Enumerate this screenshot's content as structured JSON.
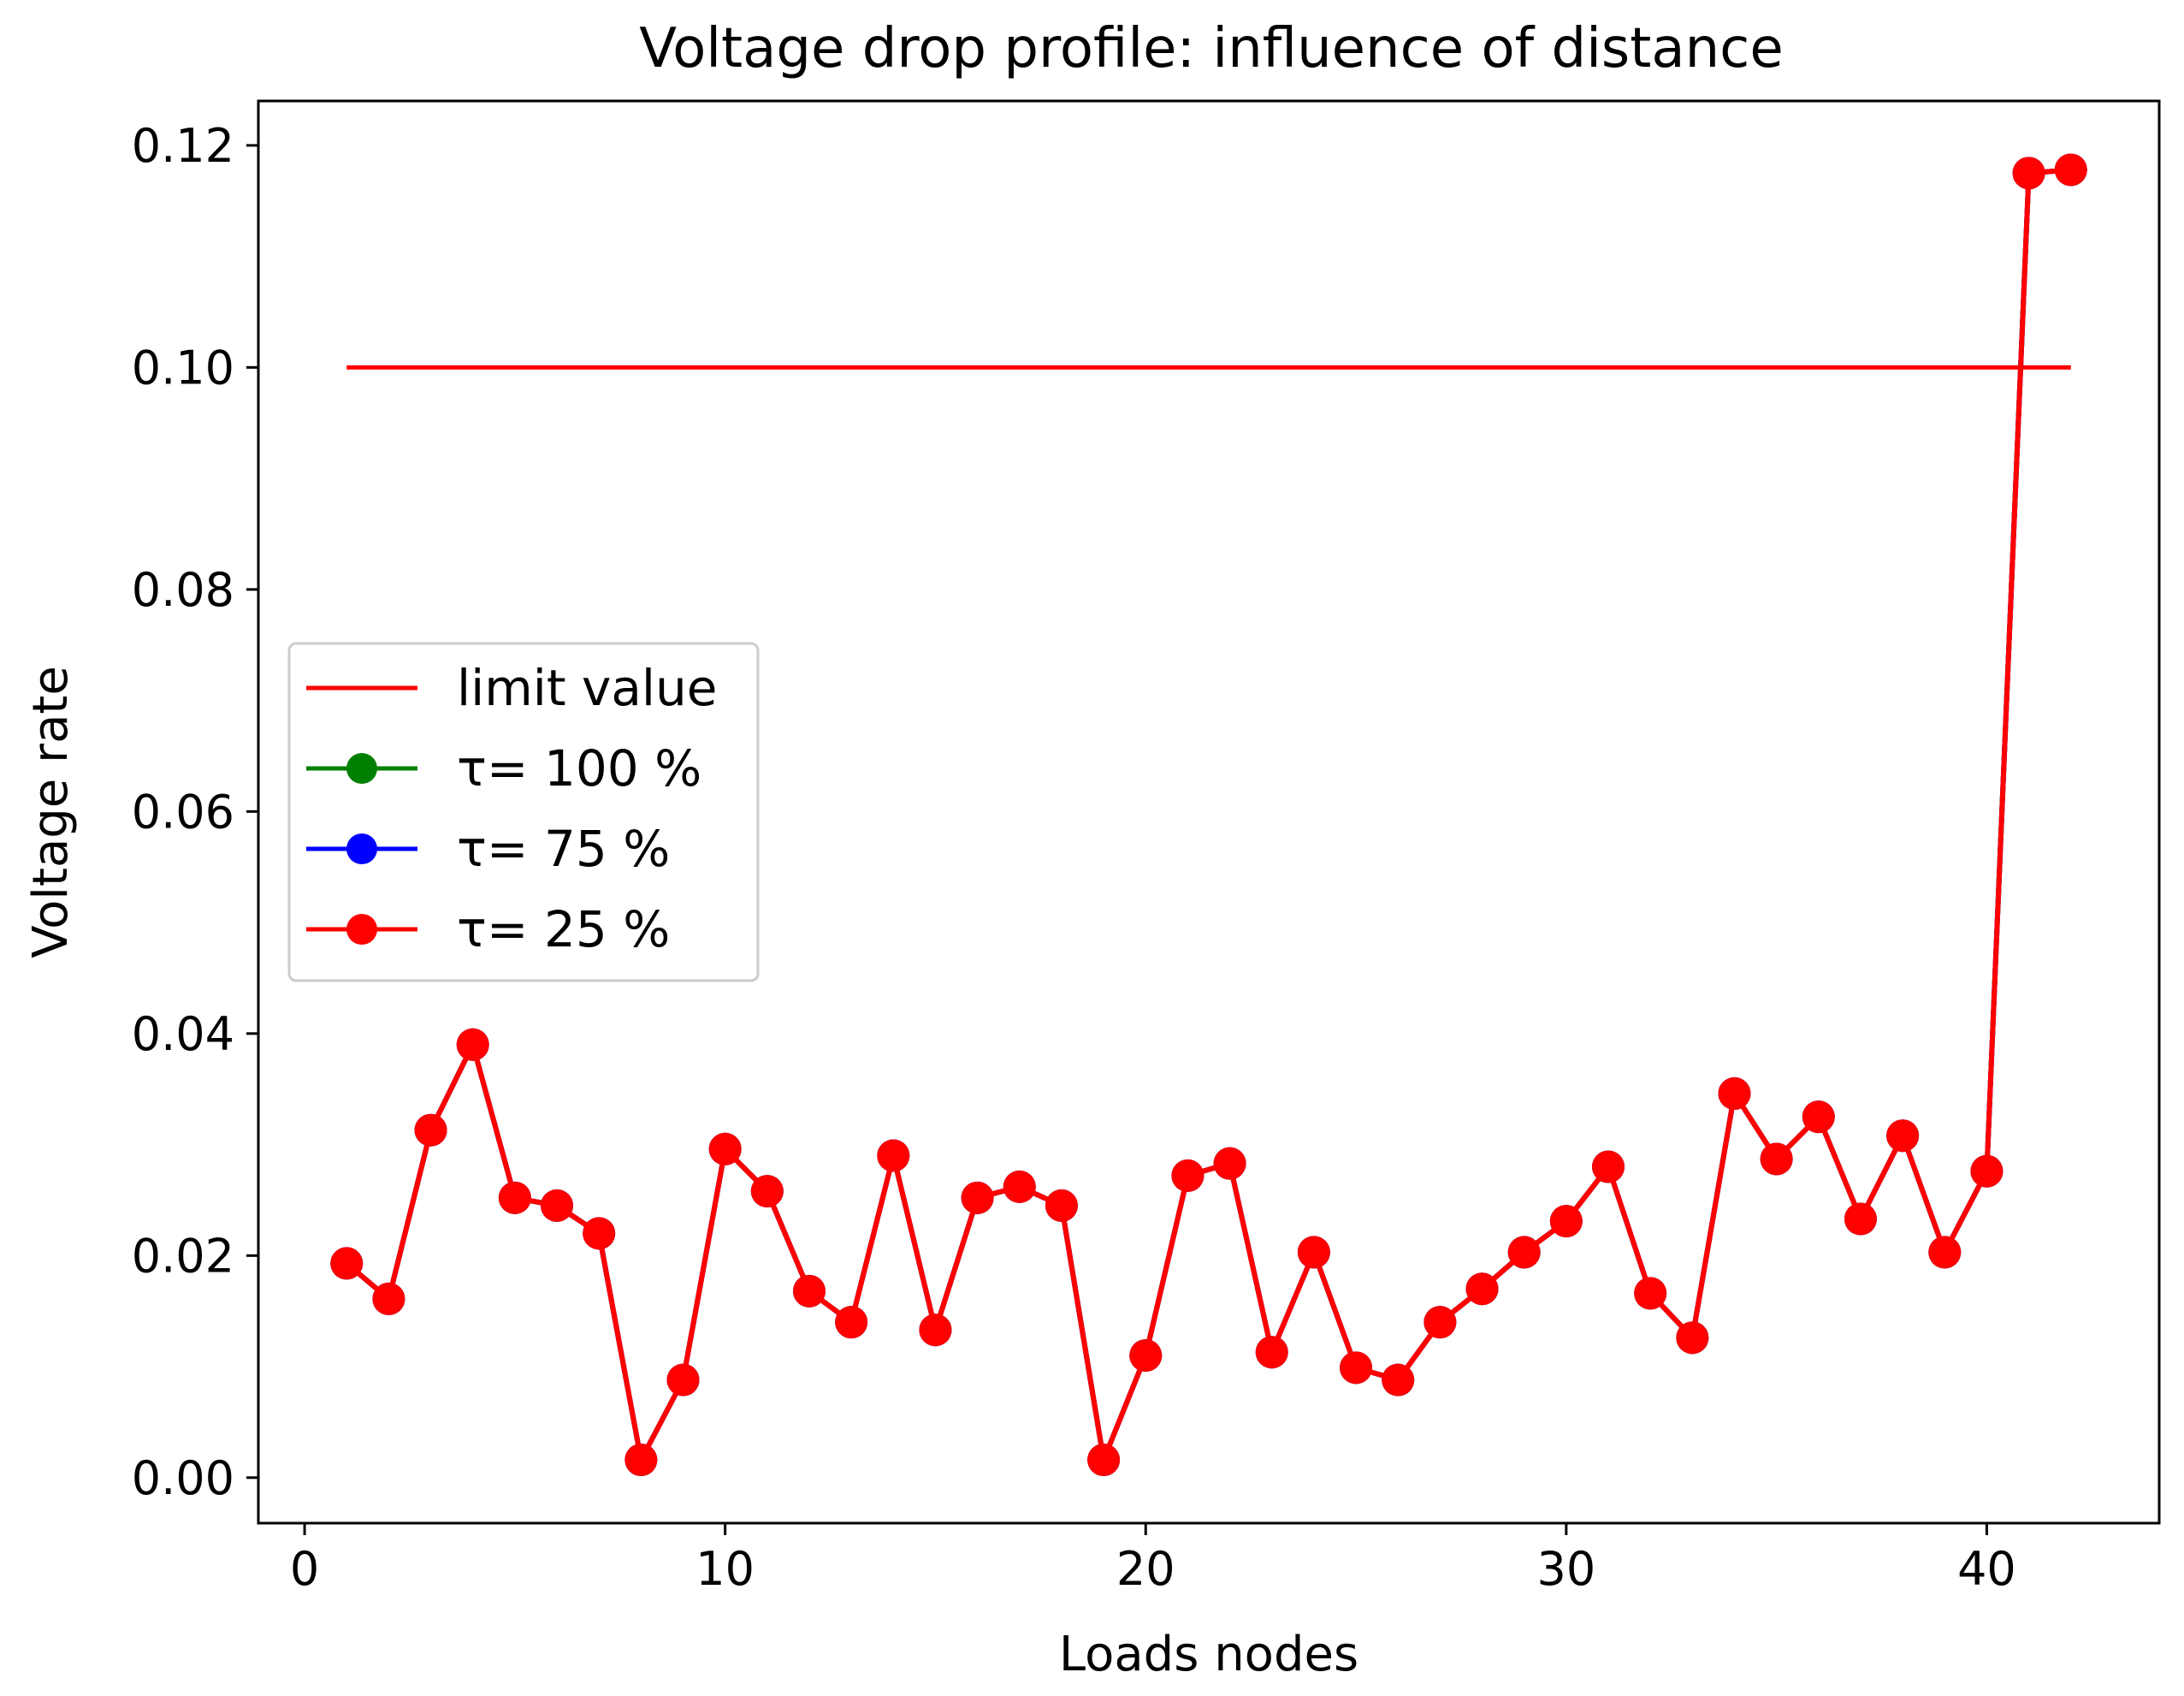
{
  "chart_data": {
    "type": "line",
    "title": "Voltage drop profile: influence of distance",
    "xlabel": "Loads nodes",
    "ylabel": "Voltage rate",
    "xlim": [
      -1.1,
      44.1
    ],
    "ylim": [
      -0.0041,
      0.124
    ],
    "xticks": [
      0,
      10,
      20,
      30,
      40
    ],
    "yticks": [
      0.0,
      0.02,
      0.04,
      0.06,
      0.08,
      0.1,
      0.12
    ],
    "ytick_labels": [
      "0.00",
      "0.02",
      "0.04",
      "0.06",
      "0.08",
      "0.10",
      "0.12"
    ],
    "legend_position": "center-left",
    "limit_line": {
      "name": "limit value",
      "color": "#ff0000",
      "x": [
        1,
        42
      ],
      "y": [
        0.1,
        0.1
      ]
    },
    "x": [
      1,
      2,
      3,
      4,
      5,
      6,
      7,
      8,
      9,
      10,
      11,
      12,
      13,
      14,
      15,
      16,
      17,
      18,
      19,
      20,
      21,
      22,
      23,
      24,
      25,
      26,
      27,
      28,
      29,
      30,
      31,
      32,
      33,
      34,
      35,
      36,
      37,
      38,
      39,
      40,
      41,
      42
    ],
    "series": [
      {
        "name": "τ= 100 %",
        "color": "#008000",
        "values": [
          0.0193,
          0.0161,
          0.0313,
          0.039,
          0.0252,
          0.0245,
          0.022,
          0.0016,
          0.0088,
          0.0296,
          0.0258,
          0.0168,
          0.014,
          0.029,
          0.0133,
          0.0252,
          0.0262,
          0.0245,
          0.0016,
          0.011,
          0.0272,
          0.0283,
          0.0113,
          0.0203,
          0.0099,
          0.0088,
          0.014,
          0.017,
          0.0203,
          0.0231,
          0.028,
          0.0166,
          0.0126,
          0.0346,
          0.0287,
          0.0325,
          0.0233,
          0.0308,
          0.0203,
          0.0276,
          0.1175,
          0.1178
        ]
      },
      {
        "name": "τ= 75 %",
        "color": "#0000ff",
        "values": [
          0.0193,
          0.0161,
          0.0313,
          0.039,
          0.0252,
          0.0245,
          0.022,
          0.0016,
          0.0088,
          0.0296,
          0.0258,
          0.0168,
          0.014,
          0.029,
          0.0133,
          0.0252,
          0.0262,
          0.0245,
          0.0016,
          0.011,
          0.0272,
          0.0283,
          0.0113,
          0.0203,
          0.0099,
          0.0088,
          0.014,
          0.017,
          0.0203,
          0.0231,
          0.028,
          0.0166,
          0.0126,
          0.0346,
          0.0287,
          0.0325,
          0.0233,
          0.0308,
          0.0203,
          0.0276,
          0.1175,
          0.1178
        ]
      },
      {
        "name": "τ= 25 %",
        "color": "#ff0000",
        "values": [
          0.0193,
          0.0161,
          0.0313,
          0.039,
          0.0252,
          0.0245,
          0.022,
          0.0016,
          0.0088,
          0.0296,
          0.0258,
          0.0168,
          0.014,
          0.029,
          0.0133,
          0.0252,
          0.0262,
          0.0245,
          0.0016,
          0.011,
          0.0272,
          0.0283,
          0.0113,
          0.0203,
          0.0099,
          0.0088,
          0.014,
          0.017,
          0.0203,
          0.0231,
          0.028,
          0.0166,
          0.0126,
          0.0346,
          0.0287,
          0.0325,
          0.0233,
          0.0308,
          0.0203,
          0.0276,
          0.1175,
          0.1178
        ]
      }
    ]
  }
}
